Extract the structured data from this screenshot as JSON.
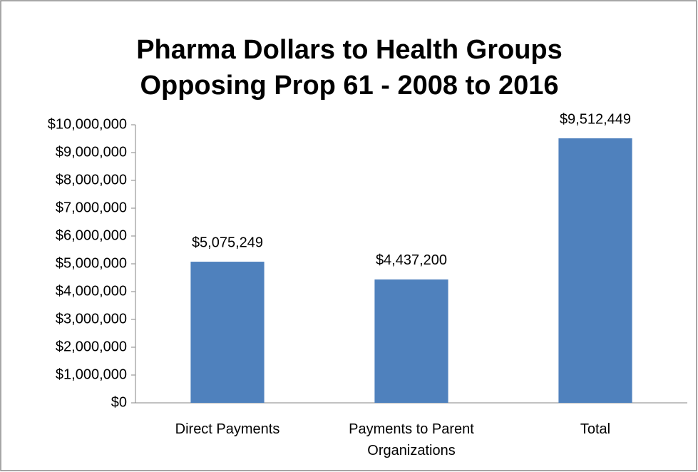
{
  "chart_data": {
    "type": "bar",
    "title": "Pharma Dollars to Health Groups Opposing Prop 61 - 2008 to 2016",
    "categories": [
      "Direct Payments",
      "Payments to Parent Organizations",
      "Total"
    ],
    "values": [
      5075249,
      4437200,
      9512449
    ],
    "value_labels": [
      "$5,075,249",
      "$4,437,200",
      "$9,512,449"
    ],
    "color": "#4f81bd",
    "ylim": [
      0,
      10000000
    ],
    "yticks": [
      {
        "value": 0,
        "label": "$0"
      },
      {
        "value": 1000000,
        "label": "$1,000,000"
      },
      {
        "value": 2000000,
        "label": "$2,000,000"
      },
      {
        "value": 3000000,
        "label": "$3,000,000"
      },
      {
        "value": 4000000,
        "label": "$4,000,000"
      },
      {
        "value": 5000000,
        "label": "$5,000,000"
      },
      {
        "value": 6000000,
        "label": "$6,000,000"
      },
      {
        "value": 7000000,
        "label": "$7,000,000"
      },
      {
        "value": 8000000,
        "label": "$8,000,000"
      },
      {
        "value": 9000000,
        "label": "$9,000,000"
      },
      {
        "value": 10000000,
        "label": "$10,000,000"
      }
    ],
    "grid": false
  }
}
